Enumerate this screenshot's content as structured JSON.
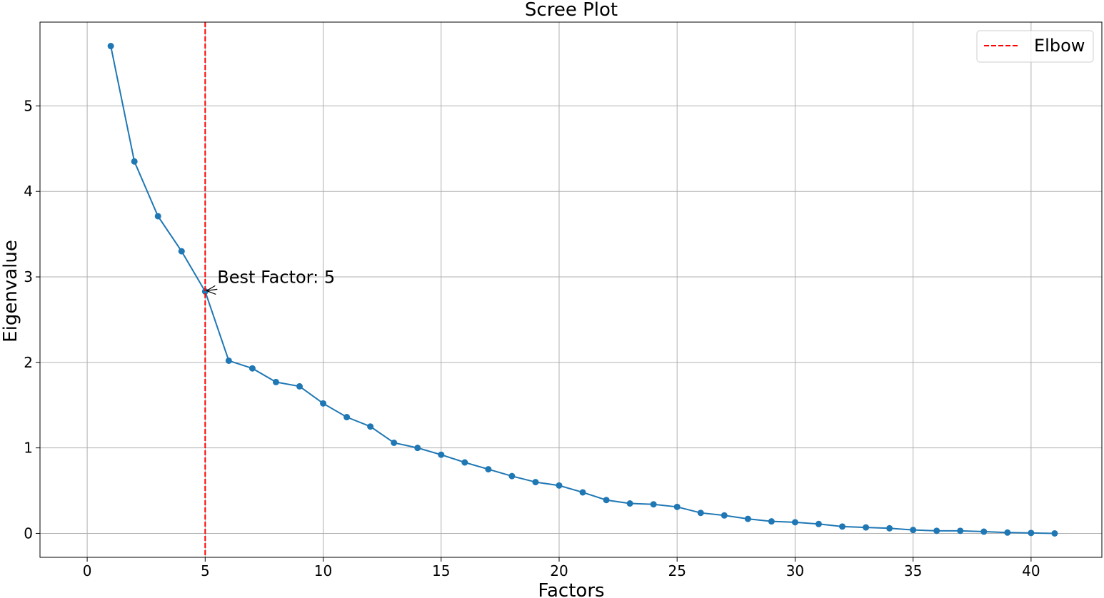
{
  "chart_data": {
    "type": "line",
    "title": "Scree Plot",
    "xlabel": "Factors",
    "ylabel": "Eigenvalue",
    "xlim": [
      -2,
      43
    ],
    "ylim": [
      -0.28,
      5.98
    ],
    "xticks": [
      0,
      5,
      10,
      15,
      20,
      25,
      30,
      35,
      40
    ],
    "yticks": [
      0,
      1,
      2,
      3,
      4,
      5
    ],
    "grid": true,
    "legend_position": "top-right",
    "series": [
      {
        "color": "#1f77b4",
        "marker": "circle",
        "x": [
          1,
          2,
          3,
          4,
          5,
          6,
          7,
          8,
          9,
          10,
          11,
          12,
          13,
          14,
          15,
          16,
          17,
          18,
          19,
          20,
          21,
          22,
          23,
          24,
          25,
          26,
          27,
          28,
          29,
          30,
          31,
          32,
          33,
          34,
          35,
          36,
          37,
          38,
          39,
          40,
          41
        ],
        "values": [
          5.7,
          4.35,
          3.71,
          3.3,
          2.83,
          2.02,
          1.93,
          1.77,
          1.72,
          1.52,
          1.36,
          1.25,
          1.06,
          1.0,
          0.92,
          0.83,
          0.75,
          0.67,
          0.6,
          0.56,
          0.48,
          0.39,
          0.35,
          0.34,
          0.31,
          0.24,
          0.21,
          0.17,
          0.14,
          0.13,
          0.11,
          0.08,
          0.07,
          0.06,
          0.04,
          0.03,
          0.03,
          0.02,
          0.01,
          0.005,
          0.0
        ]
      }
    ],
    "elbow_line": {
      "name": "Elbow",
      "x": 5,
      "color": "#ff0000",
      "style": "dashed"
    },
    "annotation": {
      "text": "Best Factor: 5",
      "x": 5,
      "y": 2.83
    },
    "legend": [
      {
        "label": "Elbow",
        "color": "#ff0000",
        "style": "dashed"
      }
    ]
  }
}
